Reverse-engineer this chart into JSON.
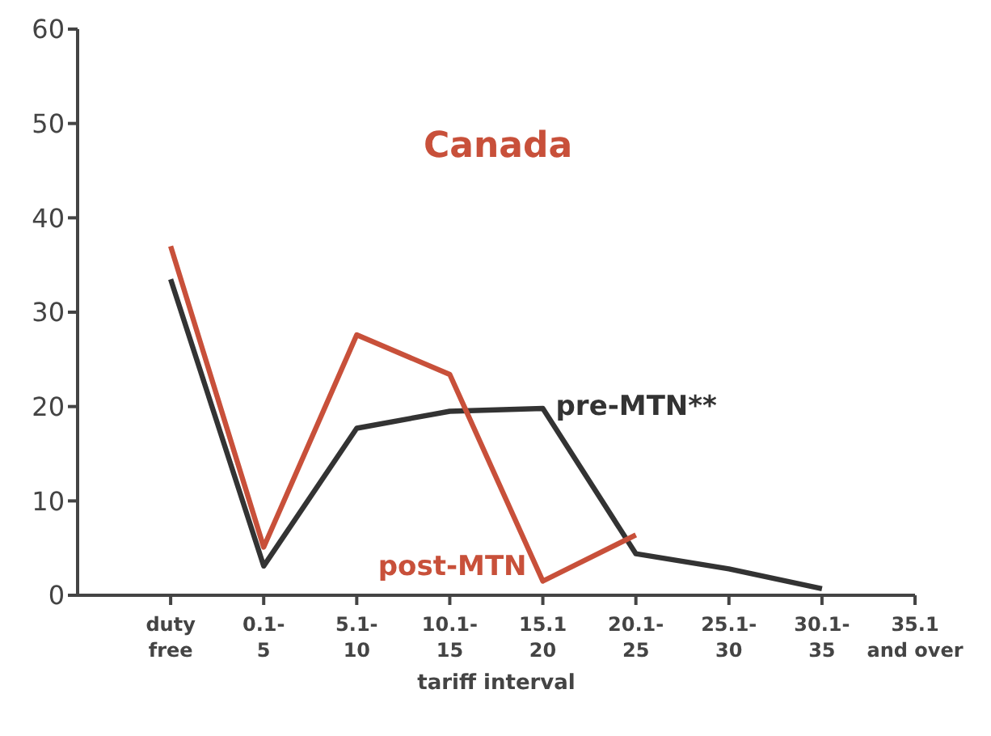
{
  "chart_data": {
    "type": "line",
    "title": "Canada",
    "xlabel": "tariff interval",
    "categories": [
      "duty\nfree",
      "0.1-\n5",
      "5.1-\n10",
      "10.1-\n15",
      "15.1\n20",
      "20.1-\n25",
      "25.1-\n30",
      "30.1-\n35",
      "35.1\nand over"
    ],
    "series": [
      {
        "name": "pre-MTN**",
        "color": "#333333",
        "values": [
          33.5,
          3.1,
          17.7,
          19.5,
          19.8,
          4.4,
          2.8,
          0.7,
          null
        ]
      },
      {
        "name": "post-MTN",
        "color": "#c8503a",
        "values": [
          37,
          5.1,
          27.6,
          23.4,
          1.5,
          6.4,
          null,
          null,
          null
        ]
      }
    ],
    "ylim": [
      0,
      60
    ],
    "yticks": [
      0,
      10,
      20,
      30,
      40,
      50,
      60
    ],
    "grid": false,
    "legend": false,
    "marker": "none",
    "line_style": "solid"
  }
}
